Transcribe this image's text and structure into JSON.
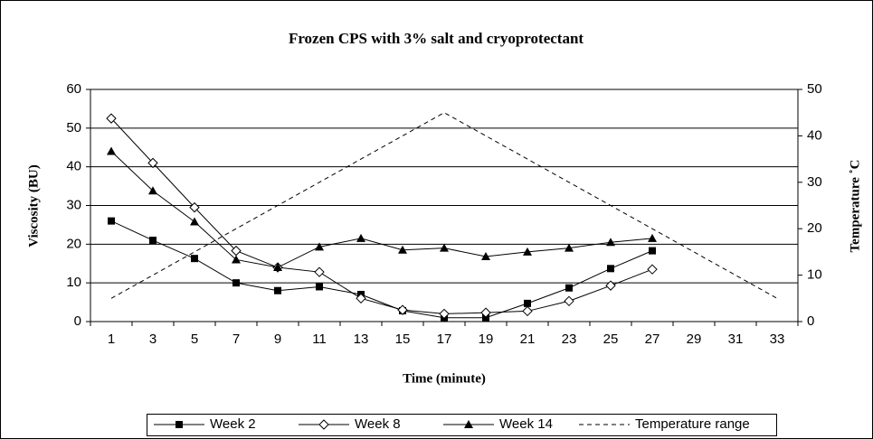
{
  "chart_data": {
    "type": "line",
    "title": "Frozen CPS with 3% salt and cryoprotectant",
    "x_label": "Time (minute)",
    "y_label": "Viscosity (BU)",
    "y2_label": "Temperature ˚C",
    "categories": [
      "1",
      "3",
      "5",
      "7",
      "9",
      "11",
      "13",
      "15",
      "17",
      "19",
      "21",
      "23",
      "25",
      "27",
      "29",
      "31",
      "33"
    ],
    "ylim": [
      0,
      60
    ],
    "yticks": [
      0,
      10,
      20,
      30,
      40,
      50,
      60
    ],
    "y2lim": [
      0,
      50
    ],
    "y2ticks": [
      0,
      10,
      20,
      30,
      40,
      50
    ],
    "grid": true,
    "legend": "bottom",
    "series": [
      {
        "name": "Week 2",
        "color": "#000000",
        "marker": "square",
        "line_style": "solid",
        "values": [
          26,
          21,
          16.3,
          10,
          8,
          9,
          7,
          2.8,
          1,
          1,
          4.7,
          8.7,
          13.7,
          18.3,
          null,
          null,
          null
        ]
      },
      {
        "name": "Week 8",
        "color": "#000000",
        "marker": "diamond-open",
        "line_style": "solid",
        "values": [
          52.5,
          41,
          29.5,
          18.3,
          14,
          12.8,
          6,
          3,
          2,
          2.3,
          2.7,
          5.3,
          9.3,
          13.5,
          null,
          null,
          null
        ]
      },
      {
        "name": "Week 14",
        "color": "#000000",
        "marker": "triangle",
        "line_style": "solid",
        "values": [
          44,
          33.8,
          25.8,
          16,
          14,
          19.3,
          21.5,
          18.5,
          19,
          16.8,
          18,
          19,
          20.5,
          21.5,
          null,
          null,
          null
        ]
      },
      {
        "name": "Temperature range",
        "color": "#000000",
        "marker": "none",
        "line_style": "dashed",
        "axis": "y2",
        "values": [
          5,
          10,
          15,
          20,
          25,
          30,
          35,
          40,
          45,
          40,
          35,
          30,
          25,
          20,
          15,
          10,
          5
        ]
      }
    ]
  }
}
